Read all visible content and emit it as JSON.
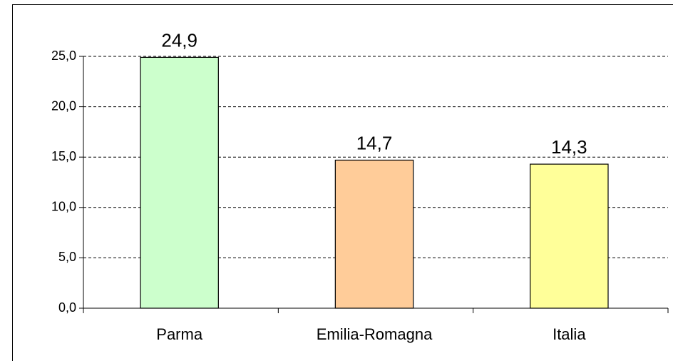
{
  "chart_data": {
    "type": "bar",
    "categories": [
      "Parma",
      "Emilia-Romagna",
      "Italia"
    ],
    "values": [
      24.9,
      14.7,
      14.3
    ],
    "value_labels": [
      "24,9",
      "14,7",
      "14,3"
    ],
    "colors": [
      "#ccffcc",
      "#ffcc99",
      "#ffff99"
    ],
    "ylim": [
      0,
      25
    ],
    "yticks": [
      {
        "value": 0,
        "label": "0,0"
      },
      {
        "value": 5,
        "label": "5,0"
      },
      {
        "value": 10,
        "label": "10,0"
      },
      {
        "value": 15,
        "label": "15,0"
      },
      {
        "value": 20,
        "label": "20,0"
      },
      {
        "value": 25,
        "label": "25,0"
      }
    ],
    "grid": true
  }
}
